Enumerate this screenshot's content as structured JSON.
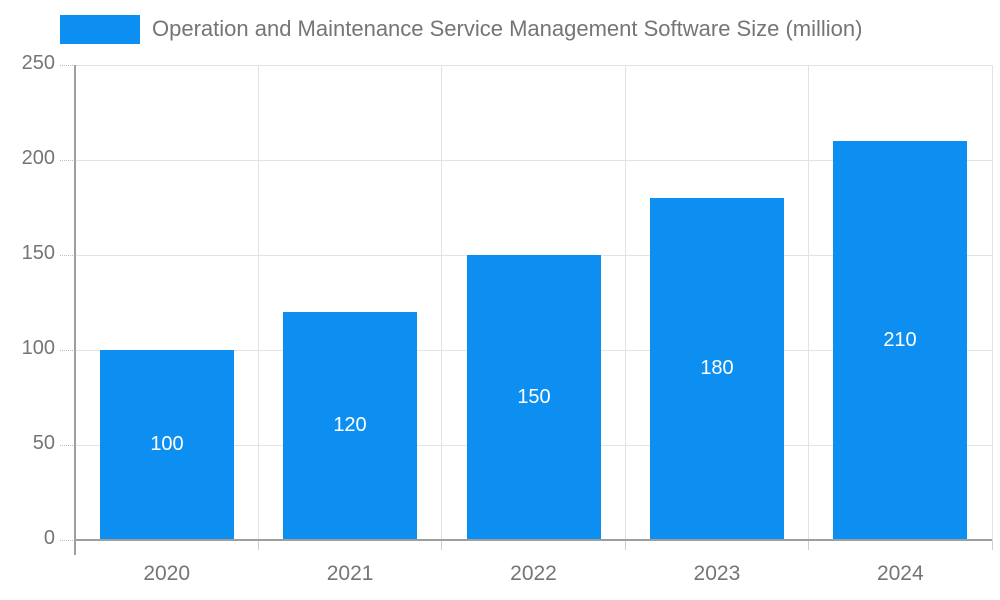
{
  "legend": {
    "label": "Operation and Maintenance Service Management Software Size (million)"
  },
  "chart_data": {
    "type": "bar",
    "title": "Operation and Maintenance Service Management Software Size (million)",
    "categories": [
      "2020",
      "2021",
      "2022",
      "2023",
      "2024"
    ],
    "values": [
      100,
      120,
      150,
      180,
      210
    ],
    "bar_labels": [
      "100",
      "120",
      "150",
      "180",
      "210"
    ],
    "xlabel": "",
    "ylabel": "",
    "ylim": [
      0,
      250
    ],
    "yticks": [
      0,
      50,
      100,
      150,
      200,
      250
    ],
    "grid": true,
    "legend_position": "top"
  },
  "colors": {
    "bar": "#0d8ff2",
    "bar_label": "#ffffff",
    "grid": "#e3e3e3",
    "axis": "#9e9e9e",
    "tick_label": "#757575",
    "legend_text": "#757575",
    "background": "#ffffff"
  }
}
